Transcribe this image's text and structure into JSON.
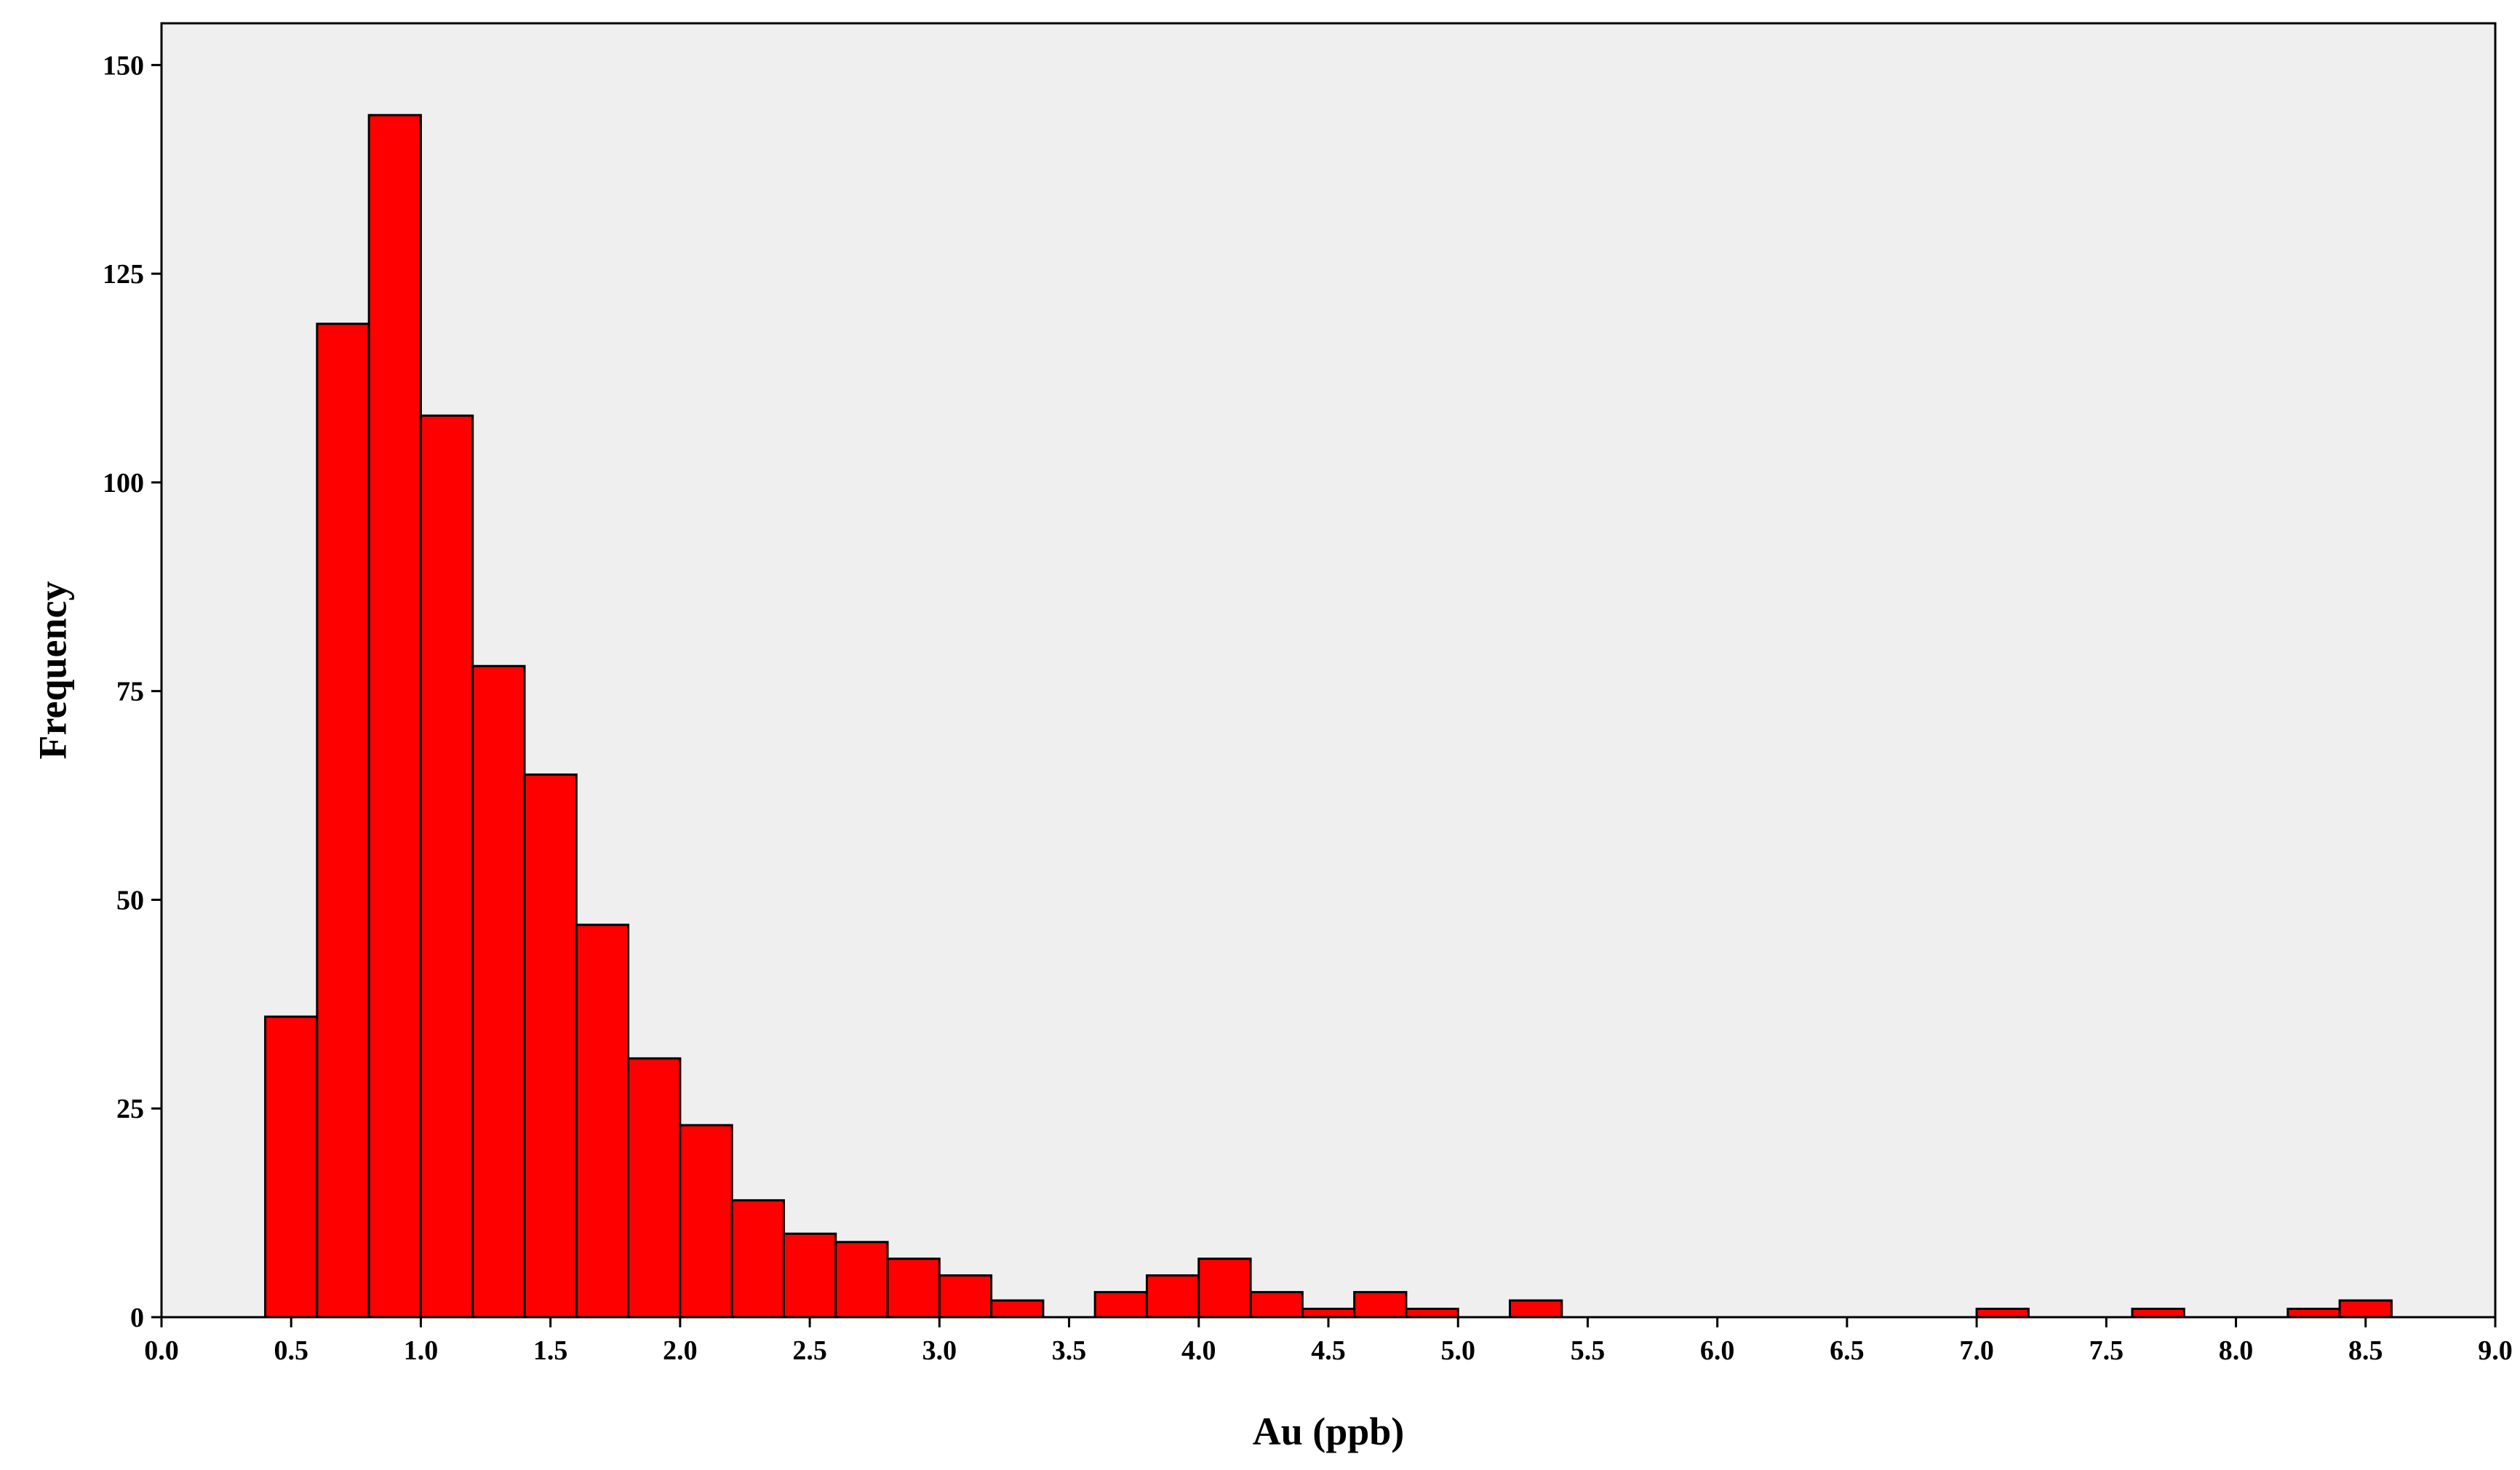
{
  "chart_data": {
    "type": "bar",
    "subtype": "histogram",
    "title": "",
    "xlabel": "Au (ppb)",
    "ylabel": "Frequency",
    "xlim": [
      0.0,
      9.0
    ],
    "ylim": [
      0,
      155
    ],
    "xticks": [
      "0.0",
      "0.5",
      "1.0",
      "1.5",
      "2.0",
      "2.5",
      "3.0",
      "3.5",
      "4.0",
      "4.5",
      "5.0",
      "5.5",
      "6.0",
      "6.5",
      "7.0",
      "7.5",
      "8.0",
      "8.5",
      "9.0"
    ],
    "yticks": [
      "0",
      "25",
      "50",
      "75",
      "100",
      "125",
      "150"
    ],
    "grid": false,
    "legend": "none",
    "bar_color": "#ff0000",
    "background_color": "#efefef",
    "bins": [
      {
        "x0": 0.4,
        "x1": 0.6,
        "count": 36
      },
      {
        "x0": 0.6,
        "x1": 0.8,
        "count": 119
      },
      {
        "x0": 0.8,
        "x1": 1.0,
        "count": 144
      },
      {
        "x0": 1.0,
        "x1": 1.2,
        "count": 108
      },
      {
        "x0": 1.2,
        "x1": 1.4,
        "count": 78
      },
      {
        "x0": 1.4,
        "x1": 1.6,
        "count": 65
      },
      {
        "x0": 1.6,
        "x1": 1.8,
        "count": 47
      },
      {
        "x0": 1.8,
        "x1": 2.0,
        "count": 31
      },
      {
        "x0": 2.0,
        "x1": 2.2,
        "count": 23
      },
      {
        "x0": 2.2,
        "x1": 2.4,
        "count": 14
      },
      {
        "x0": 2.4,
        "x1": 2.6,
        "count": 10
      },
      {
        "x0": 2.6,
        "x1": 2.8,
        "count": 9
      },
      {
        "x0": 2.8,
        "x1": 3.0,
        "count": 7
      },
      {
        "x0": 3.0,
        "x1": 3.2,
        "count": 5
      },
      {
        "x0": 3.2,
        "x1": 3.4,
        "count": 2
      },
      {
        "x0": 3.6,
        "x1": 3.8,
        "count": 3
      },
      {
        "x0": 3.8,
        "x1": 4.0,
        "count": 5
      },
      {
        "x0": 4.0,
        "x1": 4.2,
        "count": 7
      },
      {
        "x0": 4.2,
        "x1": 4.4,
        "count": 3
      },
      {
        "x0": 4.4,
        "x1": 4.6,
        "count": 1
      },
      {
        "x0": 4.6,
        "x1": 4.8,
        "count": 3
      },
      {
        "x0": 4.8,
        "x1": 5.0,
        "count": 1
      },
      {
        "x0": 5.2,
        "x1": 5.4,
        "count": 2
      },
      {
        "x0": 7.0,
        "x1": 7.2,
        "count": 1
      },
      {
        "x0": 7.6,
        "x1": 7.8,
        "count": 1
      },
      {
        "x0": 8.2,
        "x1": 8.4,
        "count": 1
      },
      {
        "x0": 8.4,
        "x1": 8.6,
        "count": 2
      }
    ]
  }
}
